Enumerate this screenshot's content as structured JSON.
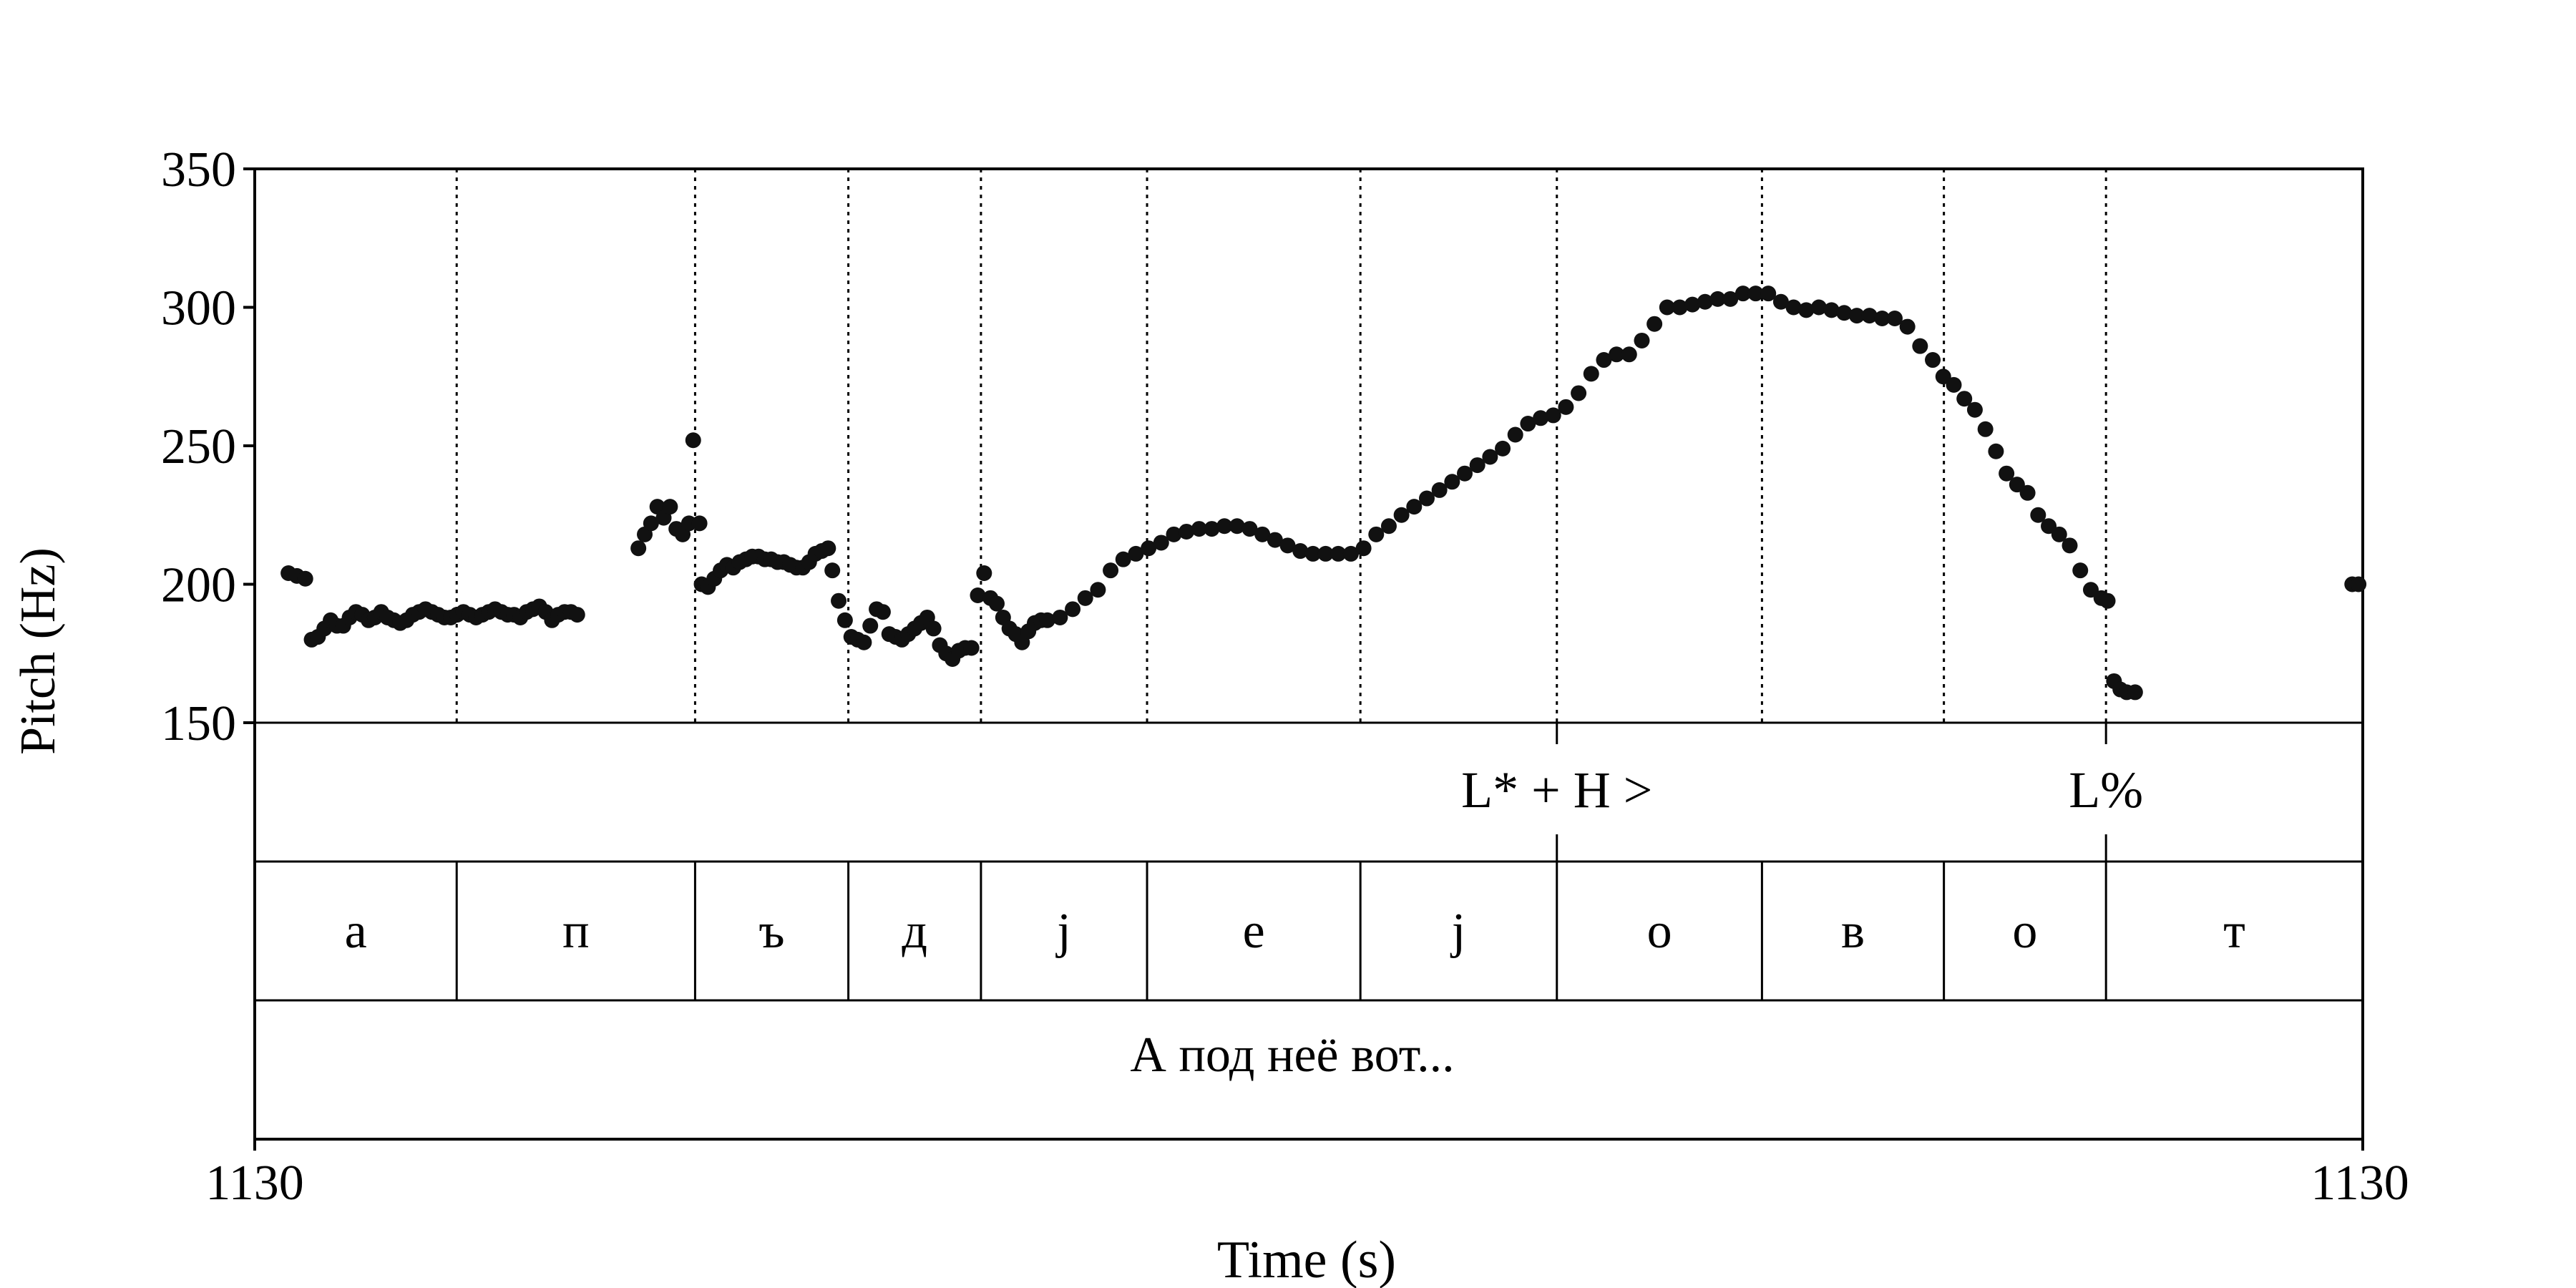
{
  "chart_data": {
    "type": "scatter",
    "ylabel": "Pitch (Hz)",
    "xlabel": "Time (s)",
    "ylim": [
      150,
      350
    ],
    "y_ticks": [
      "150",
      "200",
      "250",
      "300",
      "350"
    ],
    "x_tick_labels": [
      "1130",
      "1130"
    ],
    "segments": [
      "а",
      "п",
      "ъ",
      "д",
      "j",
      "е",
      "j",
      "о",
      "в",
      "о",
      "т"
    ],
    "segment_bounds": [
      0,
      0.0958,
      0.2089,
      0.2816,
      0.3445,
      0.4233,
      0.5245,
      0.6177,
      0.715,
      0.8013,
      0.8782,
      1.0
    ],
    "tones": [
      {
        "label": "L* + H >",
        "t": 0.6177
      },
      {
        "label": "L%",
        "t": 0.8782
      }
    ],
    "words_text": "А под неё вот...",
    "pitch_track": [
      [
        0.016,
        204
      ],
      [
        0.02,
        203
      ],
      [
        0.024,
        202
      ],
      [
        0.027,
        180
      ],
      [
        0.03,
        181
      ],
      [
        0.033,
        184
      ],
      [
        0.036,
        187
      ],
      [
        0.039,
        185
      ],
      [
        0.042,
        185
      ],
      [
        0.045,
        188
      ],
      [
        0.048,
        190
      ],
      [
        0.051,
        189
      ],
      [
        0.054,
        187
      ],
      [
        0.057,
        188
      ],
      [
        0.06,
        190
      ],
      [
        0.063,
        188
      ],
      [
        0.066,
        187
      ],
      [
        0.069,
        186
      ],
      [
        0.072,
        187
      ],
      [
        0.075,
        189
      ],
      [
        0.078,
        190
      ],
      [
        0.081,
        191
      ],
      [
        0.084,
        190
      ],
      [
        0.087,
        189
      ],
      [
        0.09,
        188
      ],
      [
        0.093,
        188
      ],
      [
        0.096,
        189
      ],
      [
        0.099,
        190
      ],
      [
        0.102,
        189
      ],
      [
        0.105,
        188
      ],
      [
        0.108,
        189
      ],
      [
        0.111,
        190
      ],
      [
        0.114,
        191
      ],
      [
        0.117,
        190
      ],
      [
        0.12,
        189
      ],
      [
        0.123,
        189
      ],
      [
        0.126,
        188
      ],
      [
        0.129,
        190
      ],
      [
        0.132,
        191
      ],
      [
        0.135,
        192
      ],
      [
        0.138,
        190
      ],
      [
        0.141,
        187
      ],
      [
        0.144,
        189
      ],
      [
        0.147,
        190
      ],
      [
        0.15,
        190
      ],
      [
        0.153,
        189
      ],
      [
        0.182,
        213
      ],
      [
        0.185,
        218
      ],
      [
        0.188,
        222
      ],
      [
        0.191,
        228
      ],
      [
        0.194,
        224
      ],
      [
        0.197,
        228
      ],
      [
        0.2,
        220
      ],
      [
        0.203,
        218
      ],
      [
        0.206,
        222
      ],
      [
        0.208,
        252
      ],
      [
        0.211,
        222
      ],
      [
        0.212,
        200
      ],
      [
        0.215,
        199
      ],
      [
        0.218,
        202
      ],
      [
        0.221,
        205
      ],
      [
        0.224,
        207
      ],
      [
        0.227,
        206
      ],
      [
        0.23,
        208
      ],
      [
        0.233,
        209
      ],
      [
        0.236,
        210
      ],
      [
        0.239,
        210
      ],
      [
        0.242,
        209
      ],
      [
        0.245,
        209
      ],
      [
        0.248,
        208
      ],
      [
        0.251,
        208
      ],
      [
        0.254,
        207
      ],
      [
        0.257,
        206
      ],
      [
        0.26,
        206
      ],
      [
        0.263,
        208
      ],
      [
        0.266,
        211
      ],
      [
        0.269,
        212
      ],
      [
        0.272,
        213
      ],
      [
        0.274,
        205
      ],
      [
        0.277,
        194
      ],
      [
        0.28,
        187
      ],
      [
        0.283,
        181
      ],
      [
        0.286,
        180
      ],
      [
        0.289,
        179
      ],
      [
        0.292,
        185
      ],
      [
        0.295,
        191
      ],
      [
        0.298,
        190
      ],
      [
        0.301,
        182
      ],
      [
        0.304,
        181
      ],
      [
        0.307,
        180
      ],
      [
        0.31,
        182
      ],
      [
        0.313,
        184
      ],
      [
        0.316,
        186
      ],
      [
        0.319,
        188
      ],
      [
        0.322,
        184
      ],
      [
        0.325,
        178
      ],
      [
        0.328,
        175
      ],
      [
        0.331,
        173
      ],
      [
        0.334,
        176
      ],
      [
        0.337,
        177
      ],
      [
        0.34,
        177
      ],
      [
        0.343,
        196
      ],
      [
        0.346,
        204
      ],
      [
        0.349,
        195
      ],
      [
        0.352,
        193
      ],
      [
        0.355,
        188
      ],
      [
        0.358,
        184
      ],
      [
        0.361,
        182
      ],
      [
        0.364,
        179
      ],
      [
        0.367,
        183
      ],
      [
        0.37,
        186
      ],
      [
        0.373,
        187
      ],
      [
        0.376,
        187
      ],
      [
        0.382,
        188
      ],
      [
        0.388,
        191
      ],
      [
        0.394,
        195
      ],
      [
        0.4,
        198
      ],
      [
        0.406,
        205
      ],
      [
        0.412,
        209
      ],
      [
        0.418,
        211
      ],
      [
        0.424,
        213
      ],
      [
        0.43,
        215
      ],
      [
        0.436,
        218
      ],
      [
        0.442,
        219
      ],
      [
        0.448,
        220
      ],
      [
        0.454,
        220
      ],
      [
        0.46,
        221
      ],
      [
        0.466,
        221
      ],
      [
        0.472,
        220
      ],
      [
        0.478,
        218
      ],
      [
        0.484,
        216
      ],
      [
        0.49,
        214
      ],
      [
        0.496,
        212
      ],
      [
        0.502,
        211
      ],
      [
        0.508,
        211
      ],
      [
        0.514,
        211
      ],
      [
        0.52,
        211
      ],
      [
        0.526,
        213
      ],
      [
        0.532,
        218
      ],
      [
        0.538,
        221
      ],
      [
        0.544,
        225
      ],
      [
        0.55,
        228
      ],
      [
        0.556,
        231
      ],
      [
        0.562,
        234
      ],
      [
        0.568,
        237
      ],
      [
        0.574,
        240
      ],
      [
        0.58,
        243
      ],
      [
        0.586,
        246
      ],
      [
        0.592,
        249
      ],
      [
        0.598,
        254
      ],
      [
        0.604,
        258
      ],
      [
        0.61,
        260
      ],
      [
        0.616,
        261
      ],
      [
        0.622,
        264
      ],
      [
        0.628,
        269
      ],
      [
        0.634,
        276
      ],
      [
        0.64,
        281
      ],
      [
        0.646,
        283
      ],
      [
        0.652,
        283
      ],
      [
        0.658,
        288
      ],
      [
        0.664,
        294
      ],
      [
        0.67,
        300
      ],
      [
        0.676,
        300
      ],
      [
        0.682,
        301
      ],
      [
        0.688,
        302
      ],
      [
        0.694,
        303
      ],
      [
        0.7,
        303
      ],
      [
        0.706,
        305
      ],
      [
        0.712,
        305
      ],
      [
        0.718,
        305
      ],
      [
        0.724,
        302
      ],
      [
        0.73,
        300
      ],
      [
        0.736,
        299
      ],
      [
        0.742,
        300
      ],
      [
        0.748,
        299
      ],
      [
        0.754,
        298
      ],
      [
        0.76,
        297
      ],
      [
        0.766,
        297
      ],
      [
        0.772,
        296
      ],
      [
        0.778,
        296
      ],
      [
        0.784,
        293
      ],
      [
        0.79,
        286
      ],
      [
        0.796,
        281
      ],
      [
        0.801,
        275
      ],
      [
        0.806,
        272
      ],
      [
        0.811,
        267
      ],
      [
        0.816,
        263
      ],
      [
        0.821,
        256
      ],
      [
        0.826,
        248
      ],
      [
        0.831,
        240
      ],
      [
        0.836,
        236
      ],
      [
        0.841,
        233
      ],
      [
        0.846,
        225
      ],
      [
        0.851,
        221
      ],
      [
        0.856,
        218
      ],
      [
        0.861,
        214
      ],
      [
        0.866,
        205
      ],
      [
        0.871,
        198
      ],
      [
        0.876,
        195
      ],
      [
        0.879,
        194
      ],
      [
        0.882,
        165
      ],
      [
        0.885,
        162
      ],
      [
        0.888,
        161
      ],
      [
        0.892,
        161
      ],
      [
        0.995,
        200
      ],
      [
        0.998,
        200
      ]
    ]
  }
}
